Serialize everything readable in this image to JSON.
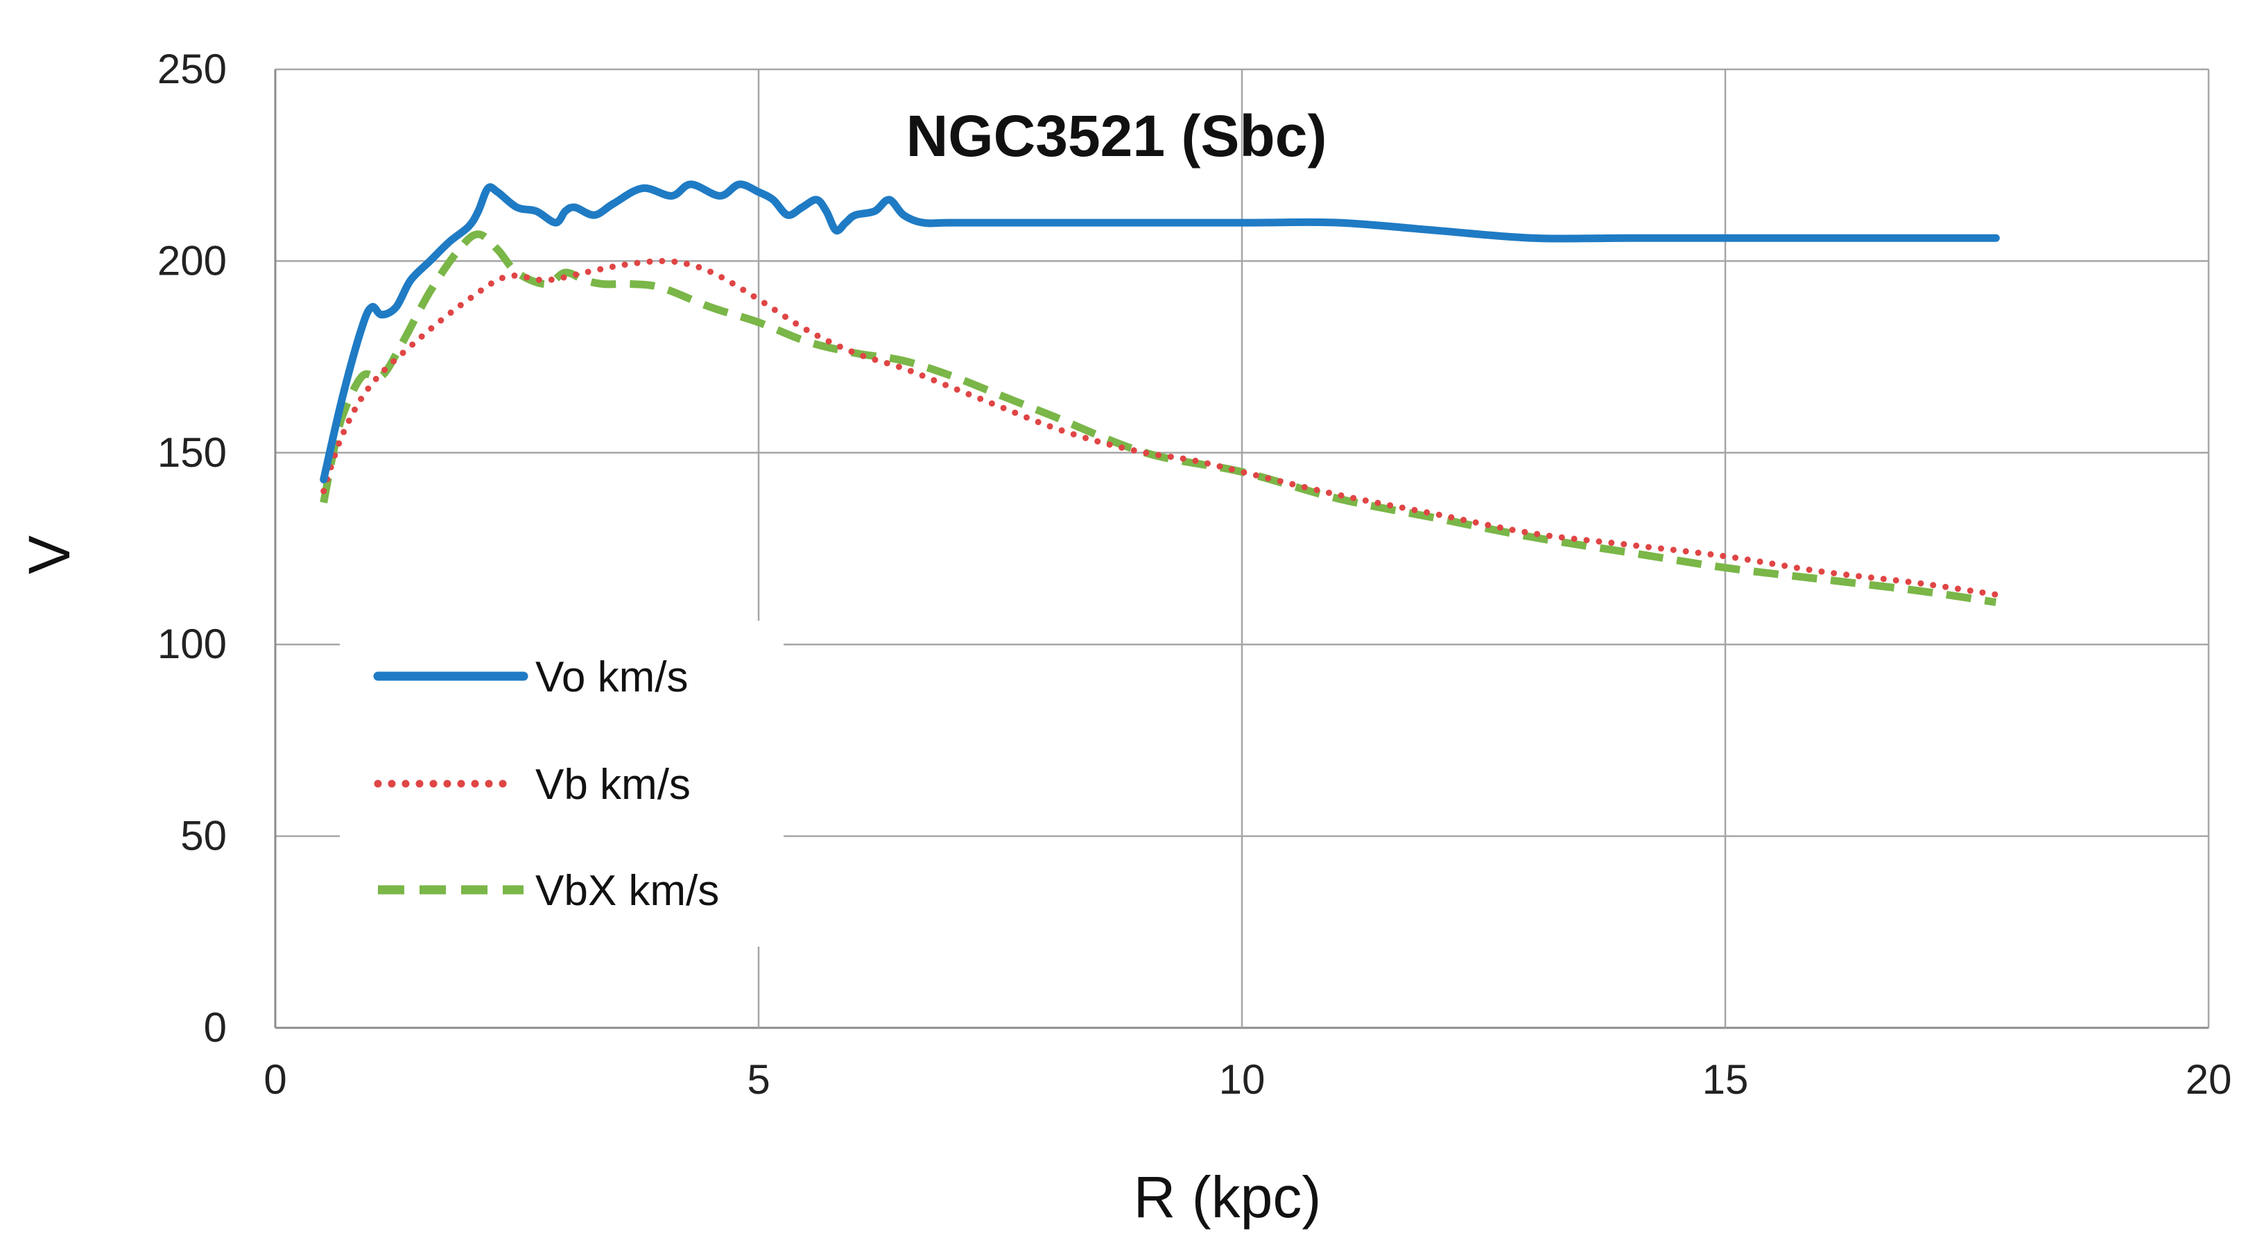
{
  "chart_data": {
    "type": "line",
    "title": "NGC3521 (Sbc)",
    "xlabel": "R (kpc)",
    "ylabel": "V",
    "xlim": [
      0,
      20
    ],
    "ylim": [
      0,
      250
    ],
    "xticks": [
      0,
      5,
      10,
      15,
      20
    ],
    "yticks": [
      0,
      50,
      100,
      150,
      200,
      250
    ],
    "xtick_labels": [
      "0",
      "5",
      "10",
      "15",
      "20"
    ],
    "ytick_labels": [
      "0",
      "50",
      "100",
      "150",
      "200",
      "250"
    ],
    "grid": true,
    "legend_position": "lower-left",
    "series": [
      {
        "name": "Vo km/s",
        "color": "#1f7bc4",
        "style": "solid",
        "x": [
          0.5,
          0.7,
          0.9,
          1.0,
          1.1,
          1.25,
          1.4,
          1.6,
          1.8,
          2.0,
          2.1,
          2.2,
          2.3,
          2.5,
          2.7,
          2.9,
          3.0,
          3.1,
          3.3,
          3.5,
          3.8,
          4.1,
          4.3,
          4.6,
          4.8,
          5.0,
          5.15,
          5.3,
          5.45,
          5.6,
          5.7,
          5.8,
          5.9,
          6.0,
          6.2,
          6.35,
          6.5,
          6.7,
          7.0,
          8.0,
          10.0,
          11.0,
          12.0,
          13.0,
          14.0,
          15.0,
          16.0,
          17.0,
          17.8
        ],
        "y": [
          143,
          165,
          183,
          188,
          186,
          188,
          195,
          200,
          205,
          209,
          213,
          219,
          218,
          214,
          213,
          210,
          213,
          214,
          212,
          215,
          219,
          217,
          220,
          217,
          220,
          218,
          216,
          212,
          214,
          216,
          213,
          208,
          210,
          212,
          213,
          216,
          212,
          210,
          210,
          210,
          210,
          210,
          208,
          206,
          206,
          206,
          206,
          206,
          206
        ]
      },
      {
        "name": "Vb km/s",
        "color": "#e04545",
        "style": "dotted",
        "x": [
          0.5,
          0.7,
          1.0,
          1.5,
          2.0,
          2.4,
          2.8,
          3.2,
          3.6,
          4.0,
          4.3,
          4.6,
          5.0,
          5.5,
          6.0,
          6.5,
          7.0,
          7.5,
          8.0,
          8.5,
          9.0,
          9.5,
          10.0,
          11.0,
          12.0,
          13.0,
          14.0,
          15.0,
          16.0,
          17.0,
          17.8
        ],
        "y": [
          140,
          155,
          168,
          180,
          190,
          196,
          195,
          197,
          199,
          200,
          199,
          196,
          190,
          182,
          176,
          172,
          167,
          162,
          157,
          153,
          150,
          148,
          145,
          139,
          134,
          129,
          126,
          123,
          119,
          116,
          113
        ]
      },
      {
        "name": "VbX km/s",
        "color": "#7ab648",
        "style": "dashed",
        "x": [
          0.5,
          0.6,
          0.7,
          0.9,
          1.1,
          1.3,
          1.6,
          1.9,
          2.1,
          2.3,
          2.5,
          2.8,
          3.0,
          3.2,
          3.4,
          3.7,
          4.0,
          4.5,
          5.0,
          5.5,
          6.0,
          6.5,
          7.0,
          7.5,
          8.0,
          9.0,
          10.0,
          11.0,
          12.0,
          13.0,
          14.0,
          15.0,
          16.0,
          17.0,
          17.8
        ],
        "y": [
          137,
          150,
          160,
          170,
          170,
          178,
          192,
          203,
          207,
          203,
          197,
          194,
          197,
          195,
          194,
          194,
          193,
          188,
          184,
          179,
          176,
          174,
          170,
          165,
          160,
          150,
          145,
          138,
          133,
          128,
          124,
          120,
          117,
          114,
          111
        ]
      }
    ]
  }
}
